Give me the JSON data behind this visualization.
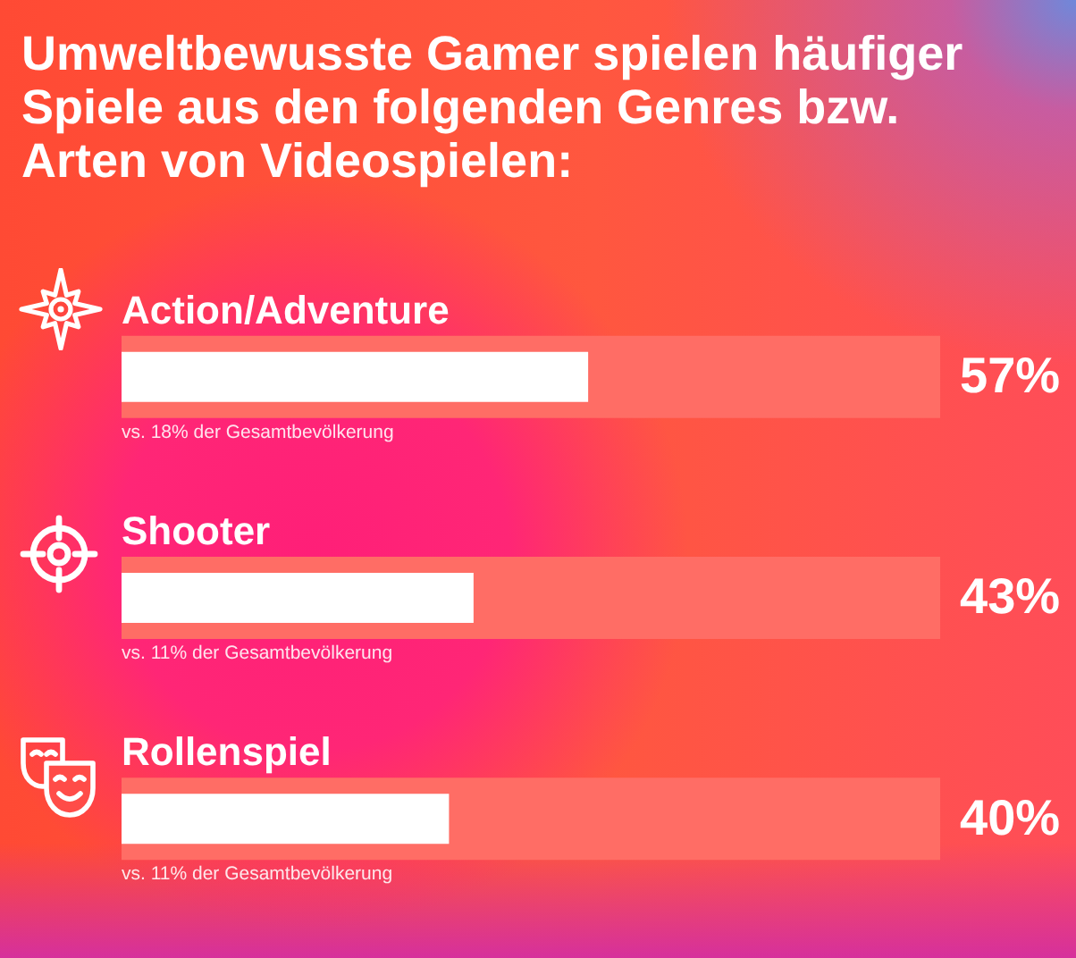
{
  "chart_data": {
    "type": "bar",
    "orientation": "horizontal",
    "title": "Umweltbewusste Gamer spielen häufiger Spiele aus den folgenden Genres bzw. Arten von Videospielen:",
    "categories": [
      "Action/Adventure",
      "Shooter",
      "Rollenspiel"
    ],
    "series": [
      {
        "color": "#ff6d65",
        "values": [
          100,
          100,
          100
        ]
      },
      {
        "color": "#ffffff",
        "values": [
          57,
          43,
          40
        ],
        "value_labels": [
          "57%",
          "43%",
          "40%"
        ]
      }
    ],
    "xlim": [
      0,
      100
    ],
    "tick_labels": "y",
    "annotations": [
      {
        "text": "vs. 18% der Gesamtbevölkerung",
        "y": "Action/Adventure"
      },
      {
        "text": "vs. 11% der Gesamtbevölkerung",
        "y": "Shooter"
      },
      {
        "text": "vs. 11% der Gesamtbevölkerung",
        "y": "Rollenspiel"
      }
    ]
  }
}
